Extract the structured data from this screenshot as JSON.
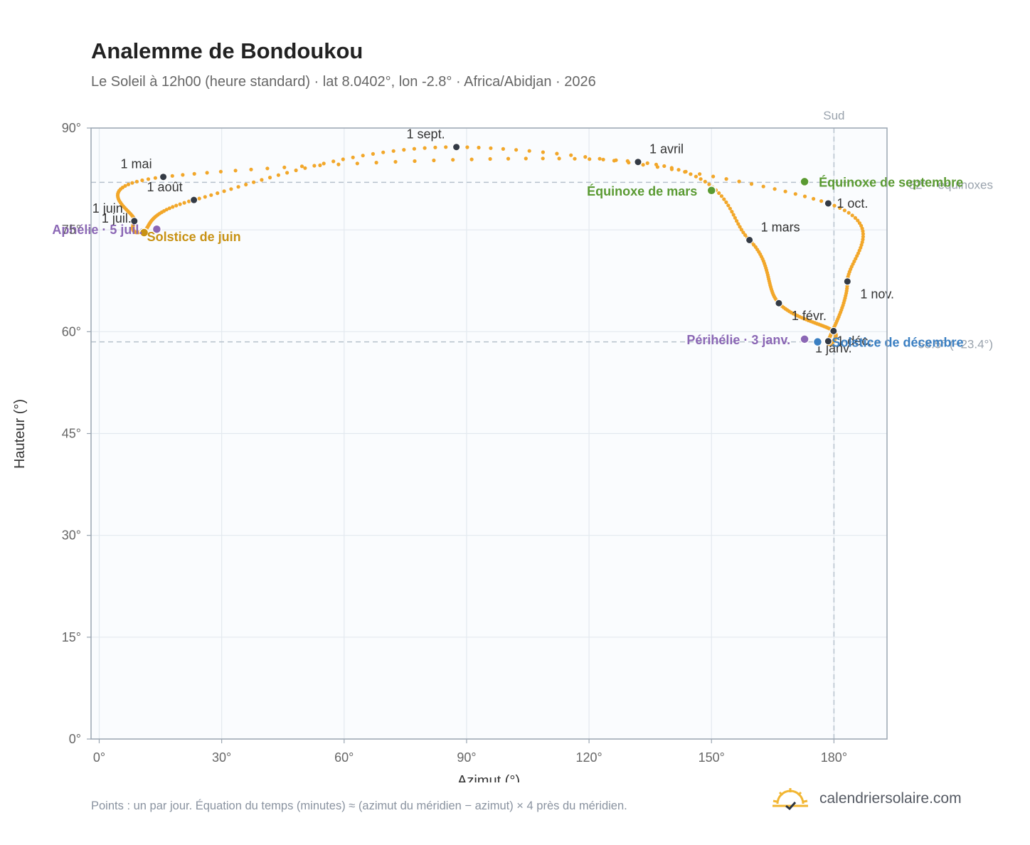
{
  "header": {
    "title": "Analemme de Bondoukou",
    "subtitle": "Le Soleil à 12h00 (heure standard) · lat 8.0402°, lon -2.8° · Africa/Abidjan · 2026"
  },
  "footer": {
    "note": "Points : un par jour. Équation du temps (minutes) ≈ (azimut du méridien − azimut) × 4 près du méridien.",
    "brand": "calendriersolaire.com",
    "brand_icon": "sun-logo-icon"
  },
  "colors": {
    "curve": "#f2a72a",
    "month_point": "#333a45",
    "equinox": "#5a9a32",
    "june_solstice": "#c89214",
    "december_solstice": "#3a7fc2",
    "apsis": "#8b67b5",
    "plot_background": "#fafcfe",
    "grid": "#e3e9ef",
    "reference_line": "#b6c1cc"
  },
  "chart_data": {
    "type": "scatter",
    "xlabel": "Azimut (°)",
    "ylabel": "Hauteur (°)",
    "xlim": [
      -2,
      193
    ],
    "ylim": [
      0,
      90
    ],
    "x_ticks": [
      0,
      30,
      60,
      90,
      120,
      150,
      180
    ],
    "x_tick_labels": [
      "0°",
      "30°",
      "60°",
      "90°",
      "120°",
      "150°",
      "180°"
    ],
    "y_ticks": [
      0,
      15,
      30,
      45,
      60,
      75,
      90
    ],
    "y_tick_labels": [
      "0°",
      "15°",
      "30°",
      "45°",
      "60°",
      "75°",
      "90°"
    ],
    "grid": true,
    "reference_lines": {
      "vertical": {
        "x": 180,
        "label": "Sud"
      },
      "horizontal": [
        {
          "y": 82,
          "label": "82° · équinoxes"
        },
        {
          "y": 58.5,
          "label": "58.5° (−23.4°)"
        }
      ]
    },
    "analemma_control_points": [
      {
        "month": 1,
        "day": 1,
        "az": 179.9,
        "alt": 60.1
      },
      {
        "month": 2,
        "day": 1,
        "az": 166.5,
        "alt": 64.2
      },
      {
        "month": 3,
        "day": 1,
        "az": 159.3,
        "alt": 73.5
      },
      {
        "month": 4,
        "day": 1,
        "az": 132.0,
        "alt": 85.0
      },
      {
        "month": 5,
        "day": 1,
        "az": 15.7,
        "alt": 82.8
      },
      {
        "month": 6,
        "day": 1,
        "az": 8.6,
        "alt": 76.3
      },
      {
        "month": 7,
        "day": 1,
        "az": 10.7,
        "alt": 74.8
      },
      {
        "month": 8,
        "day": 1,
        "az": 23.2,
        "alt": 79.4
      },
      {
        "month": 9,
        "day": 1,
        "az": 87.5,
        "alt": 87.2
      },
      {
        "month": 10,
        "day": 1,
        "az": 178.6,
        "alt": 78.9
      },
      {
        "month": 11,
        "day": 1,
        "az": 183.3,
        "alt": 67.4
      },
      {
        "month": 12,
        "day": 1,
        "az": 178.6,
        "alt": 58.6
      },
      {
        "month": 12,
        "day": 31,
        "az": 179.9,
        "alt": 60.1
      }
    ],
    "month_markers": [
      {
        "label": "1 janv.",
        "az": 179.9,
        "alt": 60.1,
        "label_pos": "below"
      },
      {
        "label": "1 févr.",
        "az": 166.5,
        "alt": 64.2,
        "label_pos": "below-right"
      },
      {
        "label": "1 mars",
        "az": 159.3,
        "alt": 73.5,
        "label_pos": "above-right"
      },
      {
        "label": "1 avril",
        "az": 132.0,
        "alt": 85.0,
        "label_pos": "above-right"
      },
      {
        "label": "1 mai",
        "az": 15.7,
        "alt": 82.8,
        "label_pos": "above-left"
      },
      {
        "label": "1 juin",
        "az": 8.6,
        "alt": 76.3,
        "label_pos": "above-left"
      },
      {
        "label": "1 juil.",
        "az": 10.7,
        "alt": 74.8,
        "label_pos": "above-left"
      },
      {
        "label": "1 août",
        "az": 23.2,
        "alt": 79.4,
        "label_pos": "above-left"
      },
      {
        "label": "1 sept.",
        "az": 87.5,
        "alt": 87.2,
        "label_pos": "above-left"
      },
      {
        "label": "1 oct.",
        "az": 178.6,
        "alt": 78.9,
        "label_pos": "right"
      },
      {
        "label": "1 nov.",
        "az": 183.3,
        "alt": 67.4,
        "label_pos": "below-right"
      },
      {
        "label": "1 déc.",
        "az": 178.6,
        "alt": 58.6,
        "label_pos": "right"
      }
    ],
    "events": [
      {
        "label": "Équinoxe de mars",
        "az": 150.0,
        "alt": 80.8,
        "kind": "equinox",
        "label_pos": "left"
      },
      {
        "label": "Équinoxe de septembre",
        "az": 172.8,
        "alt": 82.1,
        "kind": "equinox",
        "label_pos": "right"
      },
      {
        "label": "Solstice de juin",
        "az": 11.0,
        "alt": 74.6,
        "kind": "june_solstice",
        "label_pos": "below-right"
      },
      {
        "label": "Solstice de décembre",
        "az": 176.0,
        "alt": 58.5,
        "kind": "december_solstice",
        "label_pos": "right"
      },
      {
        "label": "Aphélie · 5 juil.",
        "az": 14.1,
        "alt": 75.1,
        "kind": "apsis",
        "label_pos": "left"
      },
      {
        "label": "Périhélie · 3 janv.",
        "az": 172.8,
        "alt": 58.9,
        "kind": "apsis",
        "label_pos": "left"
      }
    ]
  }
}
